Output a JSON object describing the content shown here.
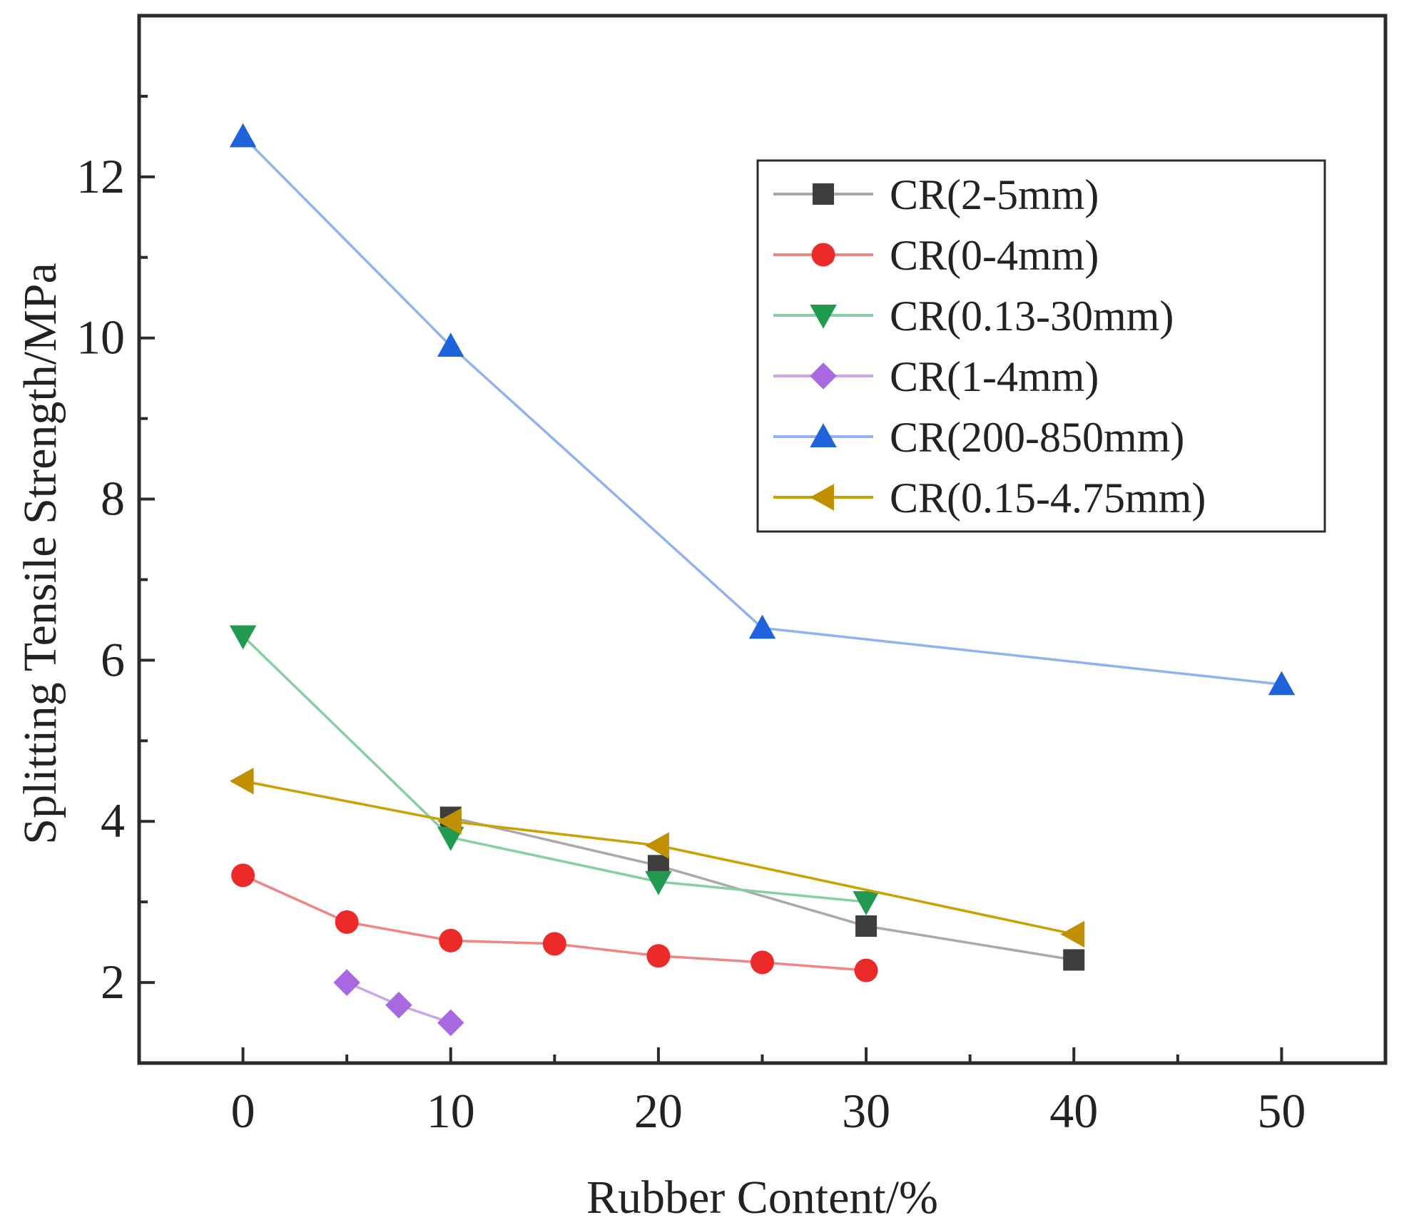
{
  "chart_data": {
    "type": "line",
    "title": "",
    "xlabel": "Rubber Content/%",
    "ylabel": "Splitting Tensile Strength/MPa",
    "xlim": [
      -5,
      55
    ],
    "ylim": [
      1.0,
      14.0
    ],
    "xticks": [
      0,
      10,
      20,
      30,
      40,
      50
    ],
    "yticks": [
      2,
      4,
      6,
      8,
      10,
      12
    ],
    "grid": false,
    "legend_position": "top-right",
    "series": [
      {
        "name": "CR(2-5mm)",
        "color": "#3d3d3d",
        "line_color": "#a9a9a9",
        "marker": "square",
        "x": [
          10,
          20,
          30,
          40
        ],
        "y": [
          4.05,
          3.45,
          2.7,
          2.28
        ]
      },
      {
        "name": "CR(0-4mm)",
        "color": "#ec2a2a",
        "line_color": "#f08585",
        "marker": "circle",
        "x": [
          0,
          5,
          10,
          15,
          20,
          25,
          30
        ],
        "y": [
          3.33,
          2.75,
          2.52,
          2.48,
          2.33,
          2.25,
          2.15
        ]
      },
      {
        "name": "CR(0.13-30mm)",
        "color": "#1f9a4f",
        "line_color": "#86cfa2",
        "marker": "triangle-down",
        "x": [
          0,
          10,
          20,
          30
        ],
        "y": [
          6.3,
          3.8,
          3.25,
          3.0
        ]
      },
      {
        "name": "CR(1-4mm)",
        "color": "#a868e0",
        "line_color": "#c9a6ee",
        "marker": "diamond",
        "x": [
          5,
          7.5,
          10
        ],
        "y": [
          2.0,
          1.72,
          1.5
        ]
      },
      {
        "name": "CR(200-850mm)",
        "color": "#1f63dc",
        "line_color": "#8fb3f0",
        "marker": "triangle-up",
        "x": [
          0,
          10,
          25,
          50
        ],
        "y": [
          12.5,
          9.9,
          6.4,
          5.7
        ]
      },
      {
        "name": "CR(0.15-4.75mm)",
        "color": "#c09000",
        "line_color": "#c9a100",
        "marker": "triangle-left",
        "x": [
          0,
          10,
          20,
          40
        ],
        "y": [
          4.5,
          4.0,
          3.7,
          2.6
        ]
      }
    ]
  }
}
